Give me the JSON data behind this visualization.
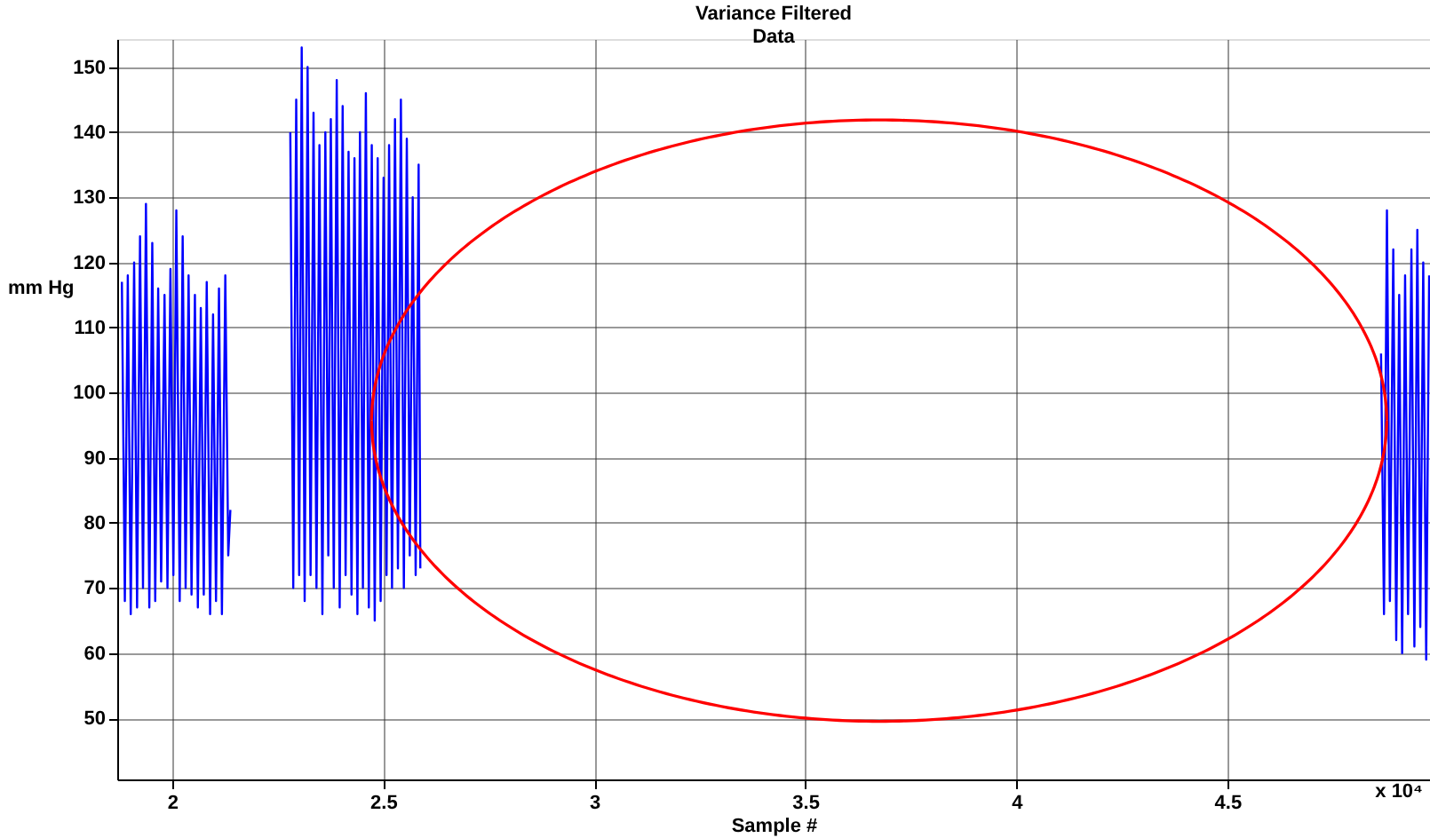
{
  "chart_data": {
    "type": "line",
    "title": "Variance Filtered\nData",
    "xlabel": "Sample\n#",
    "ylabel": "mm\nHg",
    "xlim": [
      1.87,
      4.98
    ],
    "ylim": [
      40.6,
      154.3
    ],
    "xticks": [
      2,
      2.5,
      3,
      3.5,
      4,
      4.5
    ],
    "yticks": [
      50,
      60,
      70,
      80,
      90,
      100,
      110,
      120,
      130,
      140,
      150
    ],
    "grid": true,
    "annotations": [
      "x 10⁴"
    ],
    "series": [
      {
        "color": "#0000ff",
        "x": [
          1.881,
          1.888,
          1.895,
          1.902,
          1.91,
          1.917,
          1.924,
          1.931,
          1.938,
          1.946,
          1.953,
          1.96,
          1.967,
          1.974,
          1.982,
          1.989,
          1.996,
          2.003,
          2.01,
          2.018,
          2.025,
          2.032,
          2.039,
          2.046,
          2.054,
          2.061,
          2.068,
          2.075,
          2.082,
          2.09,
          2.097,
          2.104,
          2.111,
          2.118,
          2.126,
          2.133,
          2.138,
          2.2,
          2.28,
          2.287,
          2.294,
          2.301,
          2.307,
          2.314,
          2.321,
          2.328,
          2.335,
          2.342,
          2.349,
          2.356,
          2.363,
          2.37,
          2.376,
          2.383,
          2.39,
          2.397,
          2.404,
          2.411,
          2.418,
          2.425,
          2.432,
          2.439,
          2.445,
          2.452,
          2.459,
          2.466,
          2.473,
          2.48,
          2.487,
          2.494,
          2.501,
          2.508,
          2.514,
          2.521,
          2.528,
          2.535,
          2.542,
          2.549,
          2.556,
          2.563,
          2.57,
          2.577,
          2.584,
          2.588,
          4.7,
          4.864,
          4.871,
          4.878,
          4.885,
          4.893,
          4.9,
          4.907,
          4.914,
          4.921,
          4.928,
          4.936,
          4.943,
          4.95,
          4.957,
          4.964,
          4.971,
          4.978
        ],
        "values": [
          117,
          68,
          118,
          66,
          120,
          67,
          124,
          70,
          129,
          67,
          123,
          68,
          116,
          71,
          115,
          70,
          119,
          72,
          128,
          68,
          124,
          70,
          118,
          69,
          115,
          67,
          113,
          69,
          117,
          66,
          112,
          68,
          116,
          66,
          118,
          75,
          82,
          null,
          140,
          70,
          145,
          72,
          153,
          68,
          150,
          72,
          143,
          70,
          138,
          66,
          140,
          75,
          142,
          70,
          148,
          67,
          144,
          72,
          137,
          69,
          136,
          66,
          140,
          70,
          146,
          67,
          138,
          65,
          136,
          68,
          133,
          72,
          138,
          70,
          142,
          73,
          145,
          70,
          139,
          75,
          130,
          72,
          135,
          73,
          null,
          106,
          66,
          128,
          68,
          122,
          62,
          115,
          60,
          118,
          66,
          122,
          61,
          125,
          64,
          120,
          59,
          118
        ]
      }
    ]
  }
}
